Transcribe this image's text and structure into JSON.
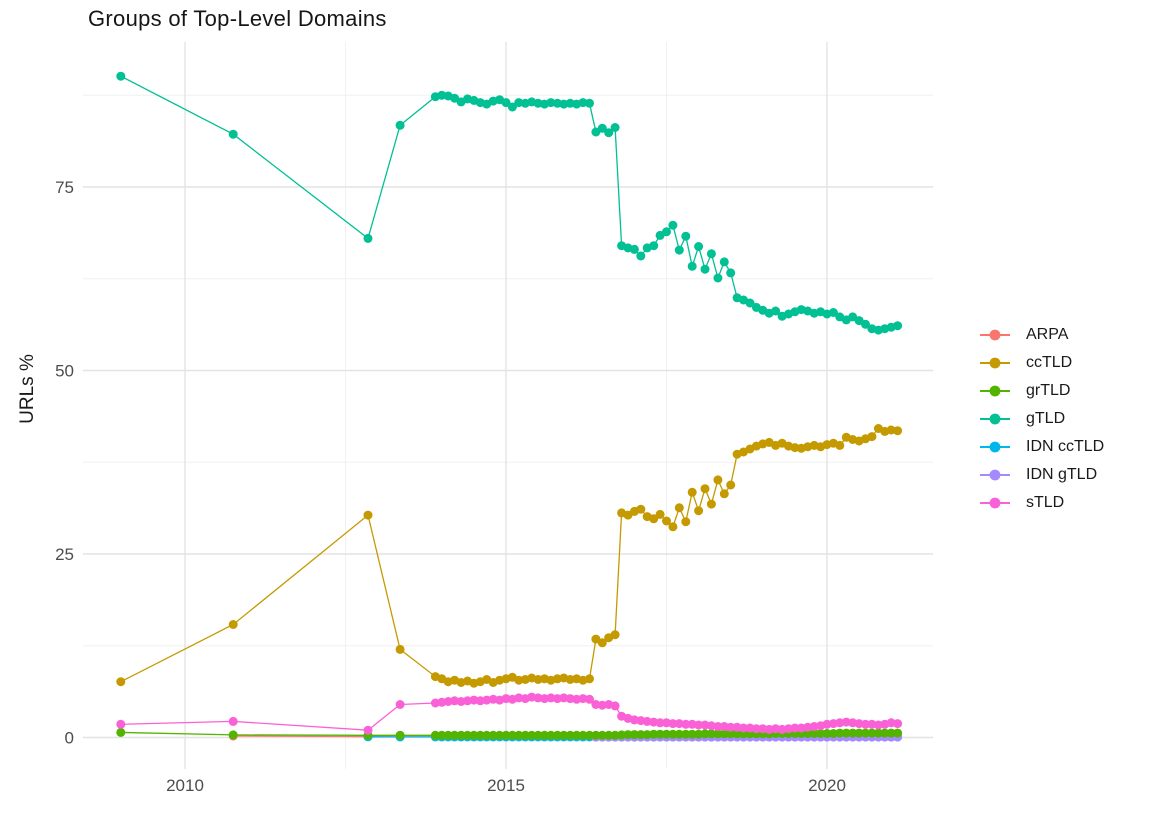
{
  "title": "Groups of Top-Level Domains",
  "y_axis": {
    "label": "URLs %",
    "major_ticks": [
      0,
      25,
      50,
      75
    ],
    "minor_ticks": [
      12.5,
      37.5,
      62.5,
      87.5
    ]
  },
  "x_axis": {
    "major_ticks": [
      2010,
      2015,
      2020
    ],
    "minor_ticks": [
      2012.5,
      2017.5
    ]
  },
  "legend": {
    "position": "right",
    "items": [
      {
        "label": "ARPA",
        "color": "#F8766D"
      },
      {
        "label": "ccTLD",
        "color": "#C49A00"
      },
      {
        "label": "grTLD",
        "color": "#53B400"
      },
      {
        "label": "gTLD",
        "color": "#00C094"
      },
      {
        "label": "IDN ccTLD",
        "color": "#00B6EB"
      },
      {
        "label": "IDN gTLD",
        "color": "#A58AFF"
      },
      {
        "label": "sTLD",
        "color": "#FB61D7"
      }
    ]
  },
  "chart_data": {
    "type": "line",
    "title": "Groups of Top-Level Domains",
    "xlabel": "",
    "ylabel": "URLs %",
    "xlim": [
      2008.4,
      2021.65
    ],
    "ylim": [
      -4.5,
      94
    ],
    "grid": true,
    "legend_position": "right",
    "x_dense": [
      2013.9,
      2014.0,
      2014.1,
      2014.2,
      2014.3,
      2014.4,
      2014.5,
      2014.6,
      2014.7,
      2014.8,
      2014.9,
      2015.0,
      2015.1,
      2015.2,
      2015.3,
      2015.4,
      2015.5,
      2015.6,
      2015.7,
      2015.8,
      2015.9,
      2016.0,
      2016.1,
      2016.2,
      2016.3,
      2016.4,
      2016.5,
      2016.6,
      2016.7,
      2016.8,
      2016.9,
      2017.0,
      2017.1,
      2017.2,
      2017.3,
      2017.4,
      2017.5,
      2017.6,
      2017.7,
      2017.8,
      2017.9,
      2018.0,
      2018.1,
      2018.2,
      2018.3,
      2018.4,
      2018.5,
      2018.6,
      2018.7,
      2018.8,
      2018.9,
      2019.0,
      2019.1,
      2019.2,
      2019.3,
      2019.4,
      2019.5,
      2019.6,
      2019.7,
      2019.8,
      2019.9,
      2020.0,
      2020.1,
      2020.2,
      2020.3,
      2020.4,
      2020.5,
      2020.6,
      2020.7,
      2020.8,
      2020.9,
      2021.0,
      2021.1
    ],
    "series": [
      {
        "name": "ARPA",
        "color": "#F8766D",
        "sparse": [
          [
            2010.75,
            0.2
          ],
          [
            2012.85,
            0.12
          ],
          [
            2013.35,
            0.1
          ]
        ],
        "dense_start_index": 0,
        "dense": [
          0.1,
          0.1,
          0.1,
          0.1,
          0.1,
          0.1,
          0.1,
          0.1,
          0.1,
          0.1,
          0.1,
          0.1,
          0.1,
          0.1,
          0.1,
          0.1,
          0.1,
          0.1,
          0.1,
          0.1,
          0.1,
          0.1,
          0.1,
          0.1,
          0.1,
          0.1,
          0.1,
          0.1,
          0.1,
          0.1,
          0.1,
          0.1,
          0.1,
          0.1,
          0.1,
          0.1,
          0.1,
          0.1,
          0.1,
          0.1,
          0.1,
          0.1,
          0.1,
          0.1,
          0.1,
          0.1,
          0.1,
          0.1,
          0.1,
          0.1,
          0.1,
          0.1,
          0.1,
          0.1,
          0.1,
          0.1,
          0.1,
          0.1,
          0.1,
          0.1,
          0.1,
          0.1,
          0.1,
          0.1,
          0.1,
          0.1,
          0.1,
          0.1,
          0.1,
          0.1,
          0.1,
          0.1,
          0.1
        ]
      },
      {
        "name": "ccTLD",
        "color": "#C49A00",
        "sparse": [
          [
            2009.0,
            7.6
          ],
          [
            2010.75,
            15.4
          ],
          [
            2012.85,
            30.3
          ],
          [
            2013.35,
            12.0
          ]
        ],
        "dense_start_index": 0,
        "dense": [
          8.3,
          8.0,
          7.6,
          7.8,
          7.5,
          7.7,
          7.4,
          7.6,
          7.9,
          7.5,
          7.8,
          8.0,
          8.2,
          7.8,
          7.9,
          8.1,
          7.9,
          8.0,
          7.8,
          8.0,
          8.1,
          7.9,
          8.0,
          7.8,
          8.0,
          13.4,
          12.9,
          13.6,
          14.0,
          30.6,
          30.3,
          30.8,
          31.1,
          30.1,
          29.8,
          30.4,
          29.5,
          28.7,
          31.3,
          29.4,
          33.4,
          30.9,
          33.9,
          31.8,
          35.1,
          33.2,
          34.4,
          38.6,
          38.9,
          39.3,
          39.7,
          40.0,
          40.2,
          39.8,
          40.1,
          39.7,
          39.5,
          39.4,
          39.6,
          39.8,
          39.6,
          39.9,
          40.1,
          39.8,
          40.9,
          40.6,
          40.4,
          40.7,
          41.0,
          42.1,
          41.7,
          41.9,
          41.8
        ]
      },
      {
        "name": "grTLD",
        "color": "#53B400",
        "sparse": [
          [
            2009.0,
            0.7
          ],
          [
            2010.75,
            0.35
          ],
          [
            2012.85,
            0.3
          ],
          [
            2013.35,
            0.3
          ]
        ],
        "dense_start_index": 0,
        "dense": [
          0.3,
          0.3,
          0.3,
          0.3,
          0.3,
          0.3,
          0.3,
          0.3,
          0.3,
          0.3,
          0.3,
          0.3,
          0.3,
          0.3,
          0.3,
          0.3,
          0.3,
          0.3,
          0.3,
          0.3,
          0.3,
          0.3,
          0.3,
          0.3,
          0.3,
          0.3,
          0.3,
          0.3,
          0.3,
          0.35,
          0.4,
          0.4,
          0.4,
          0.4,
          0.45,
          0.45,
          0.45,
          0.45,
          0.45,
          0.45,
          0.45,
          0.45,
          0.5,
          0.5,
          0.5,
          0.5,
          0.5,
          0.5,
          0.5,
          0.5,
          0.5,
          0.5,
          0.5,
          0.55,
          0.55,
          0.55,
          0.55,
          0.55,
          0.55,
          0.55,
          0.55,
          0.55,
          0.55,
          0.6,
          0.6,
          0.6,
          0.6,
          0.6,
          0.6,
          0.6,
          0.6,
          0.6,
          0.6
        ]
      },
      {
        "name": "gTLD",
        "color": "#00C094",
        "sparse": [
          [
            2009.0,
            90.1
          ],
          [
            2010.75,
            82.2
          ],
          [
            2012.85,
            68.0
          ],
          [
            2013.35,
            83.4
          ]
        ],
        "dense_start_index": 0,
        "dense": [
          87.3,
          87.5,
          87.4,
          87.1,
          86.6,
          87.0,
          86.8,
          86.5,
          86.3,
          86.7,
          86.9,
          86.5,
          85.9,
          86.5,
          86.4,
          86.6,
          86.4,
          86.3,
          86.5,
          86.4,
          86.3,
          86.4,
          86.3,
          86.5,
          86.4,
          82.5,
          83.0,
          82.4,
          83.1,
          67.0,
          66.7,
          66.5,
          65.6,
          66.7,
          67.0,
          68.4,
          68.9,
          69.8,
          66.4,
          68.3,
          64.2,
          66.9,
          63.8,
          65.9,
          62.6,
          64.8,
          63.3,
          59.9,
          59.6,
          59.2,
          58.6,
          58.2,
          57.8,
          58.1,
          57.4,
          57.7,
          58.0,
          58.3,
          58.1,
          57.8,
          58.0,
          57.7,
          57.9,
          57.3,
          56.9,
          57.3,
          56.8,
          56.3,
          55.7,
          55.5,
          55.7,
          55.9,
          56.1
        ]
      },
      {
        "name": "IDN ccTLD",
        "color": "#00B6EB",
        "sparse": [
          [
            2012.85,
            0.1
          ],
          [
            2013.35,
            0.08
          ]
        ],
        "dense_start_index": 0,
        "dense": [
          0.08,
          0.08,
          0.08,
          0.08,
          0.08,
          0.08,
          0.08,
          0.08,
          0.08,
          0.08,
          0.08,
          0.08,
          0.08,
          0.08,
          0.08,
          0.08,
          0.08,
          0.08,
          0.08,
          0.08,
          0.08,
          0.08,
          0.08,
          0.08,
          0.08,
          0.08,
          0.08,
          0.08,
          0.08,
          0.08,
          0.08,
          0.08,
          0.08,
          0.08,
          0.08,
          0.08,
          0.08,
          0.08,
          0.08,
          0.08,
          0.08,
          0.08,
          0.08,
          0.08,
          0.08,
          0.08,
          0.08,
          0.08,
          0.08,
          0.08,
          0.08,
          0.08,
          0.08,
          0.08,
          0.08,
          0.08,
          0.08,
          0.08,
          0.08,
          0.08,
          0.08,
          0.08,
          0.08,
          0.08,
          0.08,
          0.08,
          0.08,
          0.08,
          0.08,
          0.08,
          0.08,
          0.08,
          0.08
        ]
      },
      {
        "name": "IDN gTLD",
        "color": "#A58AFF",
        "sparse": [],
        "dense_start_index": 25,
        "dense": [
          0.05,
          0.05,
          0.05,
          0.05,
          0.05,
          0.05,
          0.05,
          0.05,
          0.05,
          0.05,
          0.05,
          0.05,
          0.05,
          0.05,
          0.05,
          0.05,
          0.05,
          0.05,
          0.05,
          0.05,
          0.05,
          0.05,
          0.05,
          0.05,
          0.05,
          0.05,
          0.05,
          0.05,
          0.05,
          0.05,
          0.05,
          0.05,
          0.05,
          0.05,
          0.05,
          0.05,
          0.05,
          0.05,
          0.05,
          0.05,
          0.05,
          0.05,
          0.05,
          0.05,
          0.05,
          0.05,
          0.05,
          0.05
        ]
      },
      {
        "name": "sTLD",
        "color": "#FB61D7",
        "sparse": [
          [
            2009.0,
            1.8
          ],
          [
            2010.75,
            2.2
          ],
          [
            2012.85,
            1.0
          ],
          [
            2013.35,
            4.5
          ]
        ],
        "dense_start_index": 0,
        "dense": [
          4.7,
          4.8,
          4.9,
          5.0,
          4.9,
          5.0,
          5.1,
          5.0,
          5.1,
          5.2,
          5.1,
          5.3,
          5.2,
          5.4,
          5.3,
          5.5,
          5.4,
          5.3,
          5.4,
          5.3,
          5.4,
          5.3,
          5.2,
          5.3,
          5.2,
          4.5,
          4.4,
          4.5,
          4.3,
          2.9,
          2.6,
          2.4,
          2.3,
          2.2,
          2.1,
          2.0,
          2.0,
          1.9,
          1.9,
          1.8,
          1.8,
          1.7,
          1.7,
          1.6,
          1.5,
          1.5,
          1.4,
          1.4,
          1.3,
          1.3,
          1.2,
          1.2,
          1.1,
          1.2,
          1.1,
          1.2,
          1.3,
          1.3,
          1.4,
          1.5,
          1.6,
          1.8,
          1.9,
          2.0,
          2.1,
          2.0,
          1.9,
          1.8,
          1.8,
          1.7,
          1.8,
          2.0,
          1.9
        ]
      }
    ]
  }
}
